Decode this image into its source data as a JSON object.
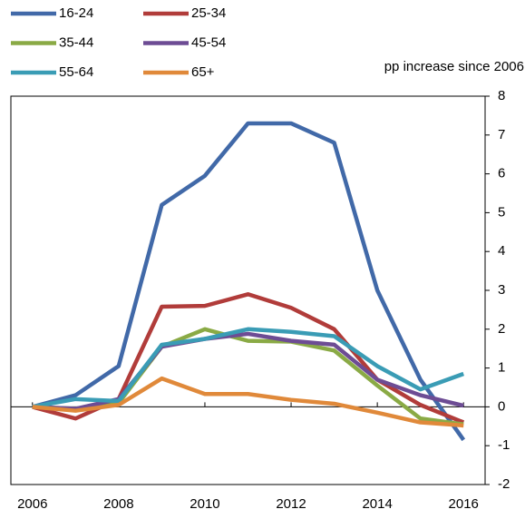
{
  "chart_data": {
    "type": "line",
    "y_label": "pp increase since 2006",
    "x": [
      2006,
      2007,
      2008,
      2009,
      2010,
      2011,
      2012,
      2013,
      2014,
      2015,
      2016
    ],
    "xlim": [
      2005.5,
      2016.5
    ],
    "xticks": [
      2006,
      2008,
      2010,
      2012,
      2014,
      2016
    ],
    "ylim": [
      -2,
      8
    ],
    "yticks": [
      -2,
      -1,
      0,
      1,
      2,
      3,
      4,
      5,
      6,
      7,
      8
    ],
    "y_axis_side": "right",
    "series": [
      {
        "name": "16-24",
        "color": "#4169a8",
        "values": [
          0,
          0.3,
          1.05,
          5.2,
          5.95,
          7.3,
          7.3,
          6.8,
          3.0,
          0.7,
          -0.85
        ]
      },
      {
        "name": "25-34",
        "color": "#b13c3a",
        "values": [
          0,
          -0.3,
          0.2,
          2.58,
          2.6,
          2.9,
          2.55,
          2.0,
          0.7,
          0.05,
          -0.4
        ]
      },
      {
        "name": "35-44",
        "color": "#8aaa45",
        "values": [
          0,
          -0.05,
          0.1,
          1.55,
          2.0,
          1.7,
          1.68,
          1.45,
          0.55,
          -0.3,
          -0.45
        ]
      },
      {
        "name": "45-54",
        "color": "#6d4c94",
        "values": [
          0,
          -0.05,
          0.2,
          1.55,
          1.75,
          1.88,
          1.7,
          1.6,
          0.7,
          0.3,
          0.03
        ]
      },
      {
        "name": "55-64",
        "color": "#3a9cb5",
        "values": [
          0,
          0.2,
          0.15,
          1.6,
          1.75,
          2.0,
          1.93,
          1.82,
          1.05,
          0.45,
          0.85
        ]
      },
      {
        "name": "65+",
        "color": "#e0893a",
        "values": [
          0,
          -0.1,
          0.05,
          0.73,
          0.33,
          0.33,
          0.18,
          0.08,
          -0.15,
          -0.4,
          -0.48
        ]
      }
    ]
  }
}
